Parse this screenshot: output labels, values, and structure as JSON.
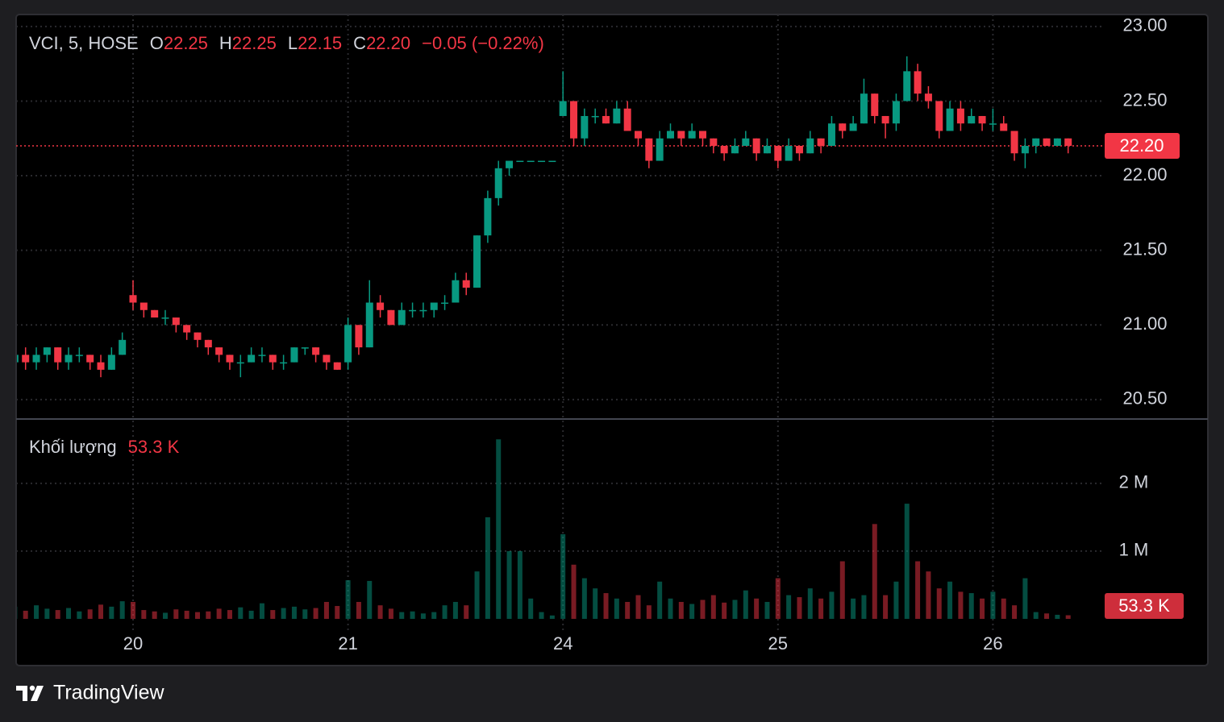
{
  "chart_data": {
    "type": "candlestick",
    "legend": {
      "symbol": "VCI, 5, HOSE",
      "fields": [
        {
          "label": "O",
          "value": "22.25"
        },
        {
          "label": "H",
          "value": "22.25"
        },
        {
          "label": "L",
          "value": "22.15"
        },
        {
          "label": "C",
          "value": "22.20"
        }
      ],
      "change": "−0.05 (−0.22%)"
    },
    "volume_title": "Khối lượng",
    "volume_value": "53.3 K",
    "brand": "TradingView",
    "up_color": "#089981",
    "down_color": "#f23645",
    "grid": true,
    "categories": [
      null,
      null,
      null,
      null,
      null,
      null,
      null,
      null,
      null,
      null,
      null,
      "20",
      null,
      null,
      null,
      null,
      null,
      null,
      null,
      null,
      null,
      null,
      null,
      null,
      null,
      null,
      null,
      null,
      null,
      null,
      null,
      "21",
      null,
      null,
      null,
      null,
      null,
      null,
      null,
      null,
      null,
      null,
      null,
      null,
      null,
      null,
      null,
      null,
      null,
      null,
      null,
      "24",
      null,
      null,
      null,
      null,
      null,
      null,
      null,
      null,
      null,
      null,
      null,
      null,
      null,
      null,
      null,
      null,
      null,
      null,
      null,
      "25",
      null,
      null,
      null,
      null,
      null,
      null,
      null,
      null,
      null,
      null,
      null,
      null,
      null,
      null,
      null,
      null,
      null,
      null,
      null,
      "26",
      null,
      null,
      null,
      null,
      null,
      null,
      null
    ],
    "open": [
      20.75,
      20.8,
      20.75,
      20.8,
      20.85,
      20.75,
      20.8,
      20.8,
      20.75,
      20.7,
      20.8,
      21.2,
      21.15,
      21.1,
      21.05,
      21.05,
      21.0,
      20.95,
      20.9,
      20.85,
      20.8,
      20.75,
      20.75,
      20.8,
      20.8,
      20.75,
      20.75,
      20.85,
      20.85,
      20.8,
      20.75,
      20.75,
      21.0,
      20.85,
      21.15,
      21.1,
      21.0,
      21.1,
      21.1,
      21.1,
      21.15,
      21.15,
      21.3,
      21.25,
      21.6,
      21.85,
      22.05,
      22.1,
      22.1,
      22.1,
      22.1,
      22.4,
      22.5,
      22.25,
      22.4,
      22.4,
      22.35,
      22.45,
      22.3,
      22.25,
      22.1,
      22.25,
      22.3,
      22.25,
      22.3,
      22.25,
      22.2,
      22.15,
      22.2,
      22.25,
      22.15,
      22.2,
      22.1,
      22.2,
      22.15,
      22.25,
      22.2,
      22.35,
      22.3,
      22.35,
      22.55,
      22.4,
      22.35,
      22.5,
      22.7,
      22.55,
      22.5,
      22.3,
      22.45,
      22.35,
      22.4,
      22.35,
      22.35,
      22.3,
      22.15,
      22.2,
      22.25,
      22.2,
      22.25
    ],
    "high": [
      20.85,
      20.85,
      20.85,
      20.85,
      20.85,
      20.85,
      20.85,
      20.8,
      20.8,
      20.85,
      20.95,
      21.3,
      21.15,
      21.1,
      21.1,
      21.05,
      21.0,
      20.95,
      20.9,
      20.85,
      20.8,
      20.8,
      20.85,
      20.85,
      20.8,
      20.8,
      20.85,
      20.85,
      20.85,
      20.8,
      20.75,
      21.05,
      21.0,
      21.3,
      21.2,
      21.1,
      21.15,
      21.15,
      21.15,
      21.15,
      21.2,
      21.35,
      21.35,
      21.6,
      21.9,
      22.1,
      22.1,
      22.1,
      22.1,
      22.1,
      22.1,
      22.7,
      22.5,
      22.45,
      22.45,
      22.45,
      22.5,
      22.5,
      22.3,
      22.25,
      22.3,
      22.35,
      22.3,
      22.35,
      22.3,
      22.25,
      22.2,
      22.25,
      22.3,
      22.25,
      22.25,
      22.2,
      22.25,
      22.2,
      22.3,
      22.25,
      22.4,
      22.35,
      22.4,
      22.65,
      22.55,
      22.4,
      22.55,
      22.8,
      22.75,
      22.6,
      22.5,
      22.5,
      22.5,
      22.45,
      22.4,
      22.45,
      22.4,
      22.3,
      22.25,
      22.25,
      22.25,
      22.25,
      22.25
    ],
    "low": [
      20.7,
      20.7,
      20.7,
      20.75,
      20.7,
      20.7,
      20.75,
      20.7,
      20.65,
      20.7,
      20.8,
      21.1,
      21.05,
      21.05,
      21.0,
      20.95,
      20.9,
      20.85,
      20.8,
      20.75,
      20.7,
      20.65,
      20.75,
      20.75,
      20.7,
      20.7,
      20.75,
      20.8,
      20.75,
      20.7,
      20.7,
      20.7,
      20.8,
      20.85,
      21.05,
      21.0,
      21.0,
      21.05,
      21.05,
      21.05,
      21.1,
      21.15,
      21.2,
      21.25,
      21.55,
      21.8,
      22.0,
      22.1,
      22.1,
      22.1,
      22.1,
      22.4,
      22.2,
      22.2,
      22.35,
      22.35,
      22.35,
      22.3,
      22.2,
      22.05,
      22.1,
      22.25,
      22.2,
      22.25,
      22.2,
      22.15,
      22.1,
      22.15,
      22.2,
      22.1,
      22.15,
      22.05,
      22.1,
      22.1,
      22.15,
      22.15,
      22.2,
      22.25,
      22.3,
      22.35,
      22.35,
      22.25,
      22.3,
      22.5,
      22.5,
      22.45,
      22.25,
      22.3,
      22.3,
      22.35,
      22.3,
      22.3,
      22.3,
      22.1,
      22.05,
      22.15,
      22.2,
      22.2,
      22.15
    ],
    "close": [
      20.8,
      20.75,
      20.8,
      20.85,
      20.75,
      20.8,
      20.8,
      20.75,
      20.7,
      20.8,
      20.9,
      21.15,
      21.1,
      21.05,
      21.05,
      21.0,
      20.95,
      20.9,
      20.85,
      20.8,
      20.75,
      20.75,
      20.8,
      20.8,
      20.75,
      20.75,
      20.85,
      20.85,
      20.8,
      20.75,
      20.7,
      21.0,
      20.85,
      21.15,
      21.1,
      21.0,
      21.1,
      21.1,
      21.1,
      21.15,
      21.15,
      21.3,
      21.25,
      21.6,
      21.85,
      22.05,
      22.1,
      22.1,
      22.1,
      22.1,
      22.1,
      22.5,
      22.25,
      22.4,
      22.4,
      22.35,
      22.45,
      22.3,
      22.25,
      22.1,
      22.25,
      22.3,
      22.25,
      22.3,
      22.25,
      22.2,
      22.15,
      22.2,
      22.25,
      22.15,
      22.2,
      22.1,
      22.2,
      22.15,
      22.25,
      22.2,
      22.35,
      22.3,
      22.35,
      22.55,
      22.4,
      22.35,
      22.5,
      22.7,
      22.55,
      22.5,
      22.3,
      22.45,
      22.35,
      22.4,
      22.35,
      22.35,
      22.3,
      22.15,
      22.2,
      22.25,
      22.2,
      22.25,
      22.2
    ],
    "volume": [
      180000,
      120000,
      200000,
      150000,
      130000,
      160000,
      110000,
      140000,
      210000,
      180000,
      260000,
      250000,
      130000,
      110000,
      90000,
      140000,
      120000,
      100000,
      110000,
      150000,
      130000,
      170000,
      120000,
      230000,
      130000,
      160000,
      180000,
      140000,
      160000,
      250000,
      190000,
      570000,
      250000,
      560000,
      200000,
      150000,
      100000,
      110000,
      80000,
      100000,
      200000,
      250000,
      200000,
      700000,
      1500000,
      2650000,
      1000000,
      1000000,
      300000,
      100000,
      50000,
      1250000,
      800000,
      600000,
      450000,
      380000,
      300000,
      250000,
      350000,
      200000,
      550000,
      300000,
      250000,
      220000,
      280000,
      350000,
      240000,
      280000,
      420000,
      300000,
      250000,
      600000,
      350000,
      320000,
      450000,
      300000,
      400000,
      850000,
      300000,
      350000,
      1400000,
      350000,
      550000,
      1700000,
      850000,
      700000,
      450000,
      550000,
      400000,
      380000,
      300000,
      400000,
      300000,
      200000,
      600000,
      100000,
      80000,
      60000,
      53300
    ],
    "ylim": [
      20.37,
      23.08
    ],
    "yticks": [
      {
        "value": 20.5,
        "label": "20.50"
      },
      {
        "value": 21,
        "label": "21.00"
      },
      {
        "value": 21.5,
        "label": "21.50"
      },
      {
        "value": 22,
        "label": "22.00"
      },
      {
        "value": 22.5,
        "label": "22.50"
      },
      {
        "value": 23,
        "label": "23.00"
      }
    ],
    "y2lim": [
      0,
      2950000
    ],
    "y2ticks": [
      {
        "value": 1000000,
        "label": "1 M"
      },
      {
        "value": 2000000,
        "label": "2 M"
      }
    ]
  }
}
